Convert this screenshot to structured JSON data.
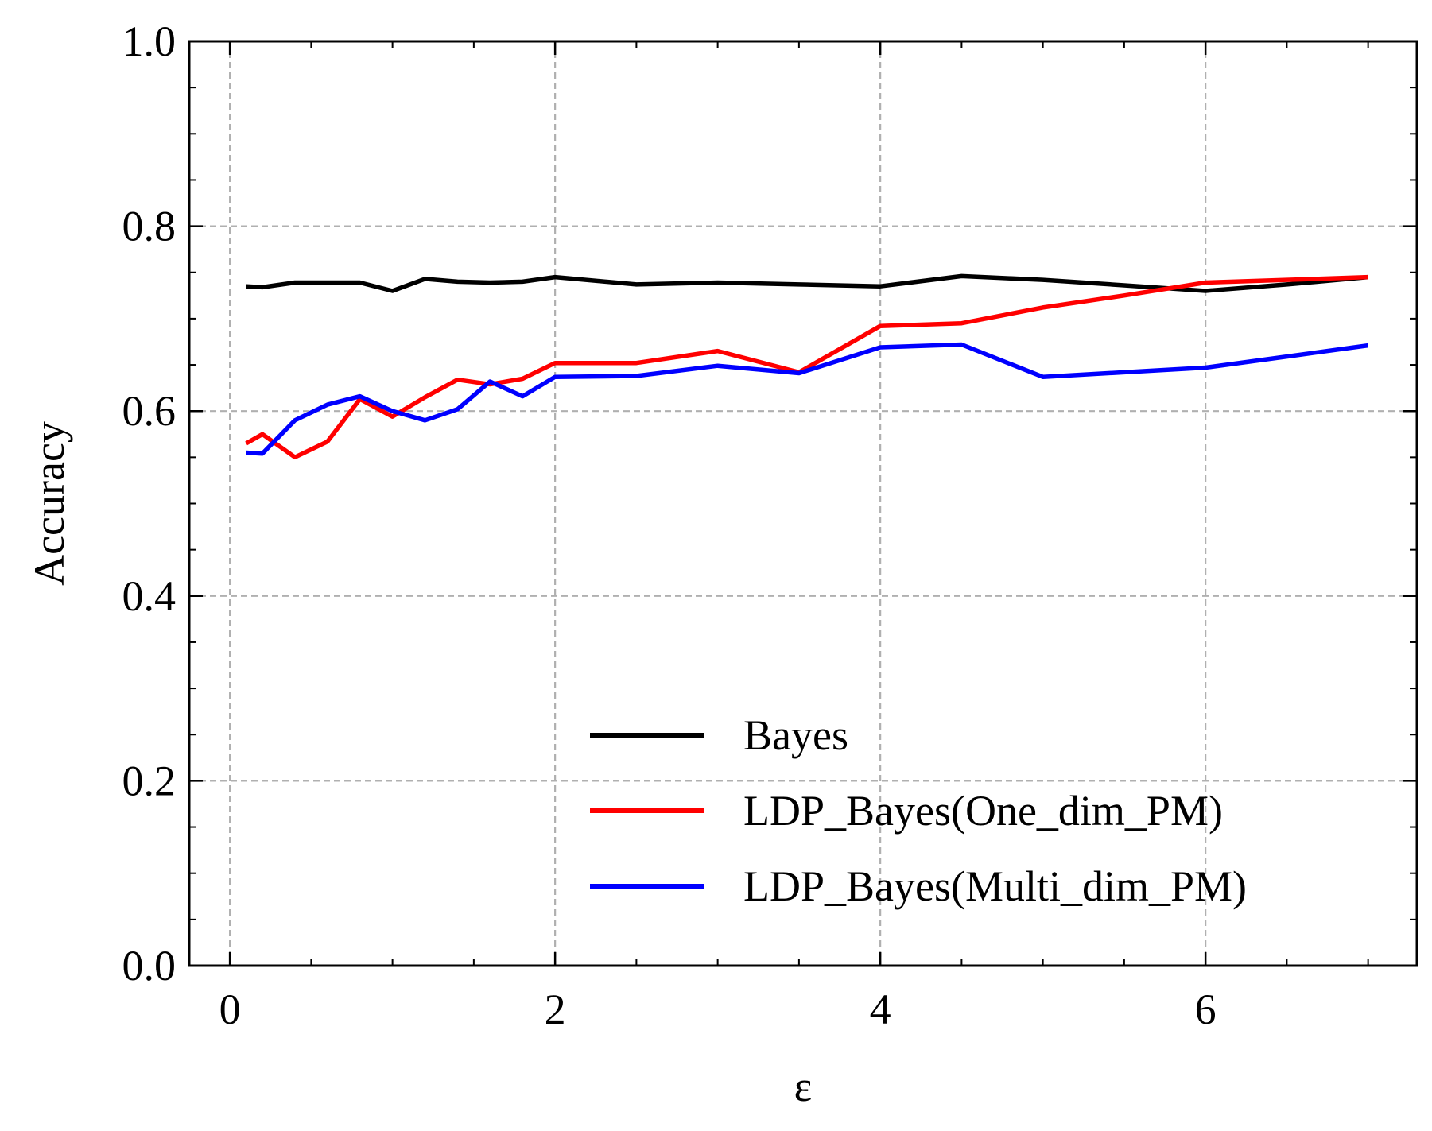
{
  "chart_data": {
    "type": "line",
    "title": "",
    "xlabel": "ε",
    "ylabel": "Accuracy",
    "xlim": [
      -0.25,
      7.3
    ],
    "ylim": [
      0.0,
      1.0
    ],
    "x_ticks": [
      0,
      2,
      4,
      6
    ],
    "x_tick_labels": [
      "0",
      "2",
      "4",
      "6"
    ],
    "x_minor_ticks": [
      0.5,
      1,
      1.5,
      2.5,
      3,
      3.5,
      4.5,
      5,
      5.5,
      6.5,
      7
    ],
    "y_ticks": [
      0.0,
      0.2,
      0.4,
      0.6,
      0.8,
      1.0
    ],
    "y_tick_labels": [
      "0.0",
      "0.2",
      "0.4",
      "0.6",
      "0.8",
      "1.0"
    ],
    "y_minor_ticks": [
      0.05,
      0.1,
      0.15,
      0.25,
      0.3,
      0.35,
      0.45,
      0.5,
      0.55,
      0.65,
      0.7,
      0.75,
      0.85,
      0.9,
      0.95
    ],
    "grid": true,
    "legend_position": "lower-right",
    "series": [
      {
        "name": "Bayes",
        "color": "#000000",
        "x": [
          0.1,
          0.2,
          0.4,
          0.6,
          0.8,
          1.0,
          1.2,
          1.4,
          1.6,
          1.8,
          2.0,
          2.5,
          3.0,
          3.5,
          4.0,
          4.5,
          5.0,
          5.5,
          6.0,
          6.5,
          7.0
        ],
        "y": [
          0.735,
          0.734,
          0.739,
          0.739,
          0.739,
          0.73,
          0.743,
          0.74,
          0.739,
          0.74,
          0.745,
          0.737,
          0.739,
          0.737,
          0.735,
          0.746,
          0.742,
          0.736,
          0.73,
          0.737,
          0.745
        ]
      },
      {
        "name": "LDP_Bayes(One_dim_PM)",
        "color": "#ff0000",
        "x": [
          0.1,
          0.2,
          0.4,
          0.6,
          0.8,
          1.0,
          1.2,
          1.4,
          1.6,
          1.8,
          2.0,
          2.5,
          3.0,
          3.5,
          4.0,
          4.5,
          5.0,
          5.5,
          6.0,
          6.5,
          7.0
        ],
        "y": [
          0.565,
          0.575,
          0.55,
          0.567,
          0.613,
          0.594,
          0.615,
          0.634,
          0.629,
          0.635,
          0.652,
          0.652,
          0.665,
          0.642,
          0.692,
          0.695,
          0.712,
          0.725,
          0.739,
          0.742,
          0.745
        ]
      },
      {
        "name": "LDP_Bayes(Multi_dim_PM)",
        "color": "#0000ff",
        "x": [
          0.1,
          0.2,
          0.4,
          0.6,
          0.8,
          1.0,
          1.2,
          1.4,
          1.6,
          1.8,
          2.0,
          2.5,
          3.0,
          3.5,
          4.0,
          4.5,
          5.0,
          5.5,
          6.0,
          6.5,
          7.0
        ],
        "y": [
          0.555,
          0.554,
          0.59,
          0.607,
          0.616,
          0.6,
          0.59,
          0.602,
          0.632,
          0.616,
          0.637,
          0.638,
          0.649,
          0.641,
          0.669,
          0.672,
          0.637,
          0.642,
          0.647,
          0.659,
          0.671
        ]
      }
    ]
  }
}
